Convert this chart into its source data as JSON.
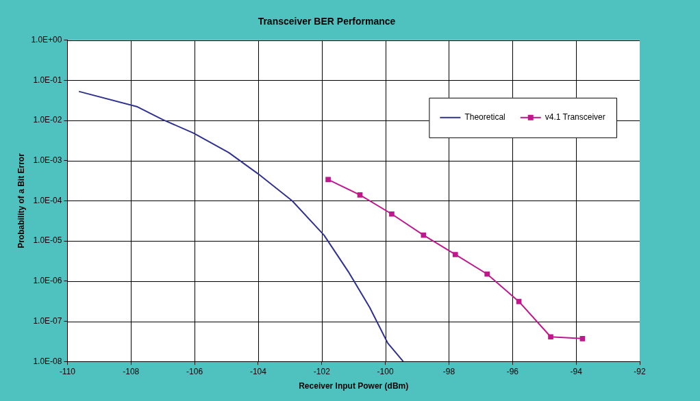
{
  "chart_data": {
    "type": "line",
    "title": "Transceiver BER Performance",
    "xlabel": "Receiver Input Power (dBm)",
    "ylabel": "Probability of a Bit Error",
    "log": "y",
    "grid": true,
    "legend": "top right",
    "xlim": [
      -110,
      -92
    ],
    "xticks": [
      -110,
      -108,
      -106,
      -104,
      -102,
      -100,
      -98,
      -96,
      -94,
      -92
    ],
    "ylim": [
      1e-08,
      1
    ],
    "yticks": [
      {
        "value": 1,
        "label": "1.0E+00"
      },
      {
        "value": 0.1,
        "label": "1.0E-01"
      },
      {
        "value": 0.01,
        "label": "1.0E-02"
      },
      {
        "value": 0.001,
        "label": "1.0E-03"
      },
      {
        "value": 0.0001,
        "label": "1.0E-04"
      },
      {
        "value": 1e-05,
        "label": "1.0E-05"
      },
      {
        "value": 1e-06,
        "label": "1.0E-06"
      },
      {
        "value": 1e-07,
        "label": "1.0E-07"
      },
      {
        "value": 1e-08,
        "label": "1.0E-08"
      }
    ],
    "series": [
      {
        "name": "Theoretical",
        "color": "#2e3192",
        "marker": "none",
        "x": [
          -109.64,
          -107.8,
          -107,
          -106.04,
          -104.93,
          -104,
          -102.93,
          -101.93,
          -101.16,
          -100.49,
          -99.93,
          -99.44
        ],
        "values": [
          0.053,
          0.022,
          0.0105,
          0.0049,
          0.0016,
          0.00047,
          0.0001,
          1.4e-05,
          1.7e-06,
          2.2e-07,
          2.9e-08,
          1e-08
        ]
      },
      {
        "name": "v4.1 Transceiver",
        "color": "#c0188c",
        "marker": "square",
        "x": [
          -101.8,
          -100.8,
          -99.8,
          -98.8,
          -97.8,
          -96.8,
          -95.8,
          -94.8,
          -93.8
        ],
        "values": [
          0.00034,
          0.00014,
          4.7e-05,
          1.4e-05,
          4.6e-06,
          1.5e-06,
          3.1e-07,
          4.1e-08,
          3.7e-08
        ]
      }
    ]
  }
}
